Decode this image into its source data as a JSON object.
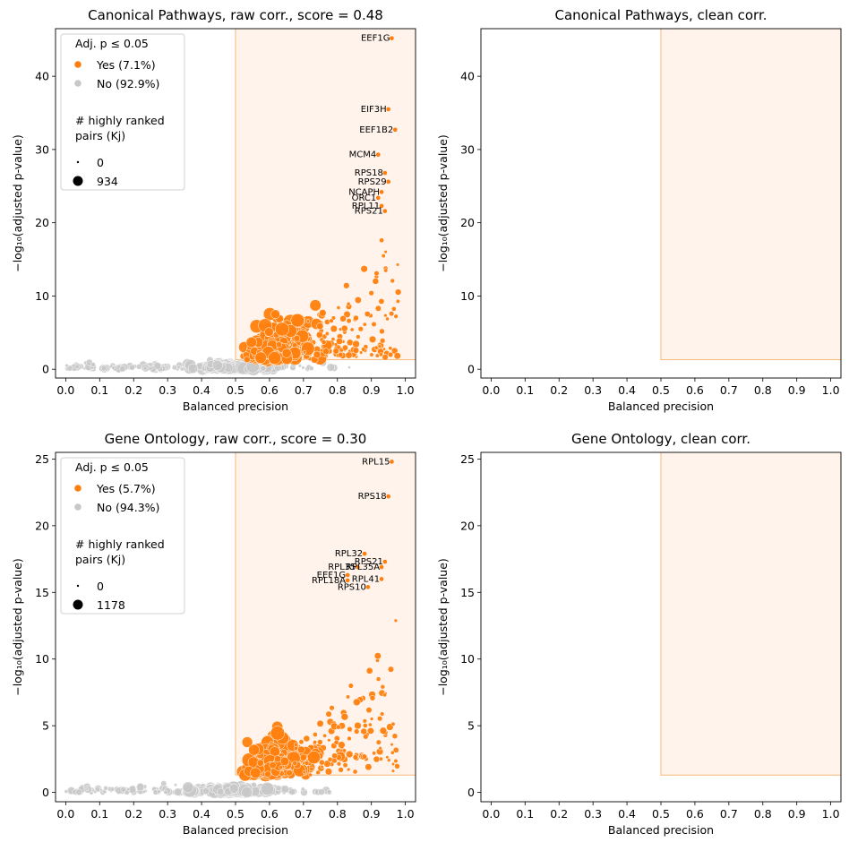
{
  "colors": {
    "significant": "#ff7f0e",
    "nonsignificant": "#c8c8c8",
    "region_fill": "#fff3eb",
    "region_stroke": "#f5b87a"
  },
  "chart_data": [
    {
      "type": "scatter",
      "title": "Canonical Pathways, raw corr., score = 0.48",
      "xlabel": "Balanced precision",
      "ylabel": "−log₁₀(adjusted p-value)",
      "xlim": [
        -0.03,
        1.03
      ],
      "ylim": [
        -1.2,
        46.5
      ],
      "xticks": [
        "0.0",
        "0.1",
        "0.2",
        "0.3",
        "0.4",
        "0.5",
        "0.6",
        "0.7",
        "0.8",
        "0.9",
        "1.0"
      ],
      "yticks": [
        0,
        10,
        20,
        30,
        40
      ],
      "threshold_region": {
        "x_min": 0.5,
        "y_min": 1.3
      },
      "cloud": {
        "seed": 11,
        "n_orange": 420,
        "n_grey": 320
      },
      "legend": {
        "title": "Adj. p ≤ 0.05",
        "yes_label": "Yes (7.1%)",
        "no_label": "No (92.9%)",
        "size_title_line1": "# highly ranked",
        "size_title_line2": "pairs (Kj)",
        "size_min_label": "0",
        "size_max_label": "934"
      },
      "annotations": [
        {
          "gene": "EEF1G",
          "x": 0.96,
          "y": 45.2
        },
        {
          "gene": "EIF3H",
          "x": 0.95,
          "y": 35.5
        },
        {
          "gene": "EEF1B2",
          "x": 0.97,
          "y": 32.7
        },
        {
          "gene": "MCM4",
          "x": 0.92,
          "y": 29.3
        },
        {
          "gene": "RPS18",
          "x": 0.94,
          "y": 26.8
        },
        {
          "gene": "RPS29",
          "x": 0.95,
          "y": 25.6
        },
        {
          "gene": "NCAPH",
          "x": 0.93,
          "y": 24.2
        },
        {
          "gene": "ORC1",
          "x": 0.92,
          "y": 23.4
        },
        {
          "gene": "RPL11",
          "x": 0.93,
          "y": 22.3
        },
        {
          "gene": "RPS21",
          "x": 0.94,
          "y": 21.6
        }
      ]
    },
    {
      "type": "scatter",
      "title": "Canonical Pathways, clean corr.",
      "xlabel": "Balanced precision",
      "ylabel": "−log₁₀(adjusted p-value)",
      "xlim": [
        -0.03,
        1.03
      ],
      "ylim": [
        -1.2,
        46.5
      ],
      "xticks": [
        "0.0",
        "0.1",
        "0.2",
        "0.3",
        "0.4",
        "0.5",
        "0.6",
        "0.7",
        "0.8",
        "0.9",
        "1.0"
      ],
      "yticks": [
        0,
        10,
        20,
        30,
        40
      ],
      "threshold_region": {
        "x_min": 0.5,
        "y_min": 1.3
      },
      "points": []
    },
    {
      "type": "scatter",
      "title": "Gene Ontology, raw corr., score = 0.30",
      "xlabel": "Balanced precision",
      "ylabel": "−log₁₀(adjusted p-value)",
      "xlim": [
        -0.03,
        1.03
      ],
      "ylim": [
        -0.7,
        25.5
      ],
      "xticks": [
        "0.0",
        "0.1",
        "0.2",
        "0.3",
        "0.4",
        "0.5",
        "0.6",
        "0.7",
        "0.8",
        "0.9",
        "1.0"
      ],
      "yticks": [
        0,
        5,
        10,
        15,
        20,
        25
      ],
      "threshold_region": {
        "x_min": 0.5,
        "y_min": 1.3
      },
      "cloud": {
        "seed": 29,
        "n_orange": 440,
        "n_grey": 340
      },
      "legend": {
        "title": "Adj. p ≤ 0.05",
        "yes_label": "Yes (5.7%)",
        "no_label": "No (94.3%)",
        "size_title_line1": "# highly ranked",
        "size_title_line2": "pairs (Kj)",
        "size_min_label": "0",
        "size_max_label": "1178"
      },
      "annotations": [
        {
          "gene": "RPL15",
          "x": 0.96,
          "y": 24.8
        },
        {
          "gene": "RPS18",
          "x": 0.95,
          "y": 22.2
        },
        {
          "gene": "RPL32",
          "x": 0.88,
          "y": 17.9
        },
        {
          "gene": "RPS21",
          "x": 0.94,
          "y": 17.3
        },
        {
          "gene": "RPL35A",
          "x": 0.93,
          "y": 16.9
        },
        {
          "gene": "RPL35",
          "x": 0.86,
          "y": 16.9
        },
        {
          "gene": "EEF1G",
          "x": 0.83,
          "y": 16.3
        },
        {
          "gene": "RPL41",
          "x": 0.93,
          "y": 16.0
        },
        {
          "gene": "RPL18A",
          "x": 0.83,
          "y": 15.9
        },
        {
          "gene": "RPS10",
          "x": 0.89,
          "y": 15.4
        }
      ]
    },
    {
      "type": "scatter",
      "title": "Gene Ontology, clean corr.",
      "xlabel": "Balanced precision",
      "ylabel": "−log₁₀(adjusted p-value)",
      "xlim": [
        -0.03,
        1.03
      ],
      "ylim": [
        -0.7,
        25.5
      ],
      "xticks": [
        "0.0",
        "0.1",
        "0.2",
        "0.3",
        "0.4",
        "0.5",
        "0.6",
        "0.7",
        "0.8",
        "0.9",
        "1.0"
      ],
      "yticks": [
        0,
        5,
        10,
        15,
        20,
        25
      ],
      "threshold_region": {
        "x_min": 0.5,
        "y_min": 1.3
      },
      "points": []
    }
  ]
}
